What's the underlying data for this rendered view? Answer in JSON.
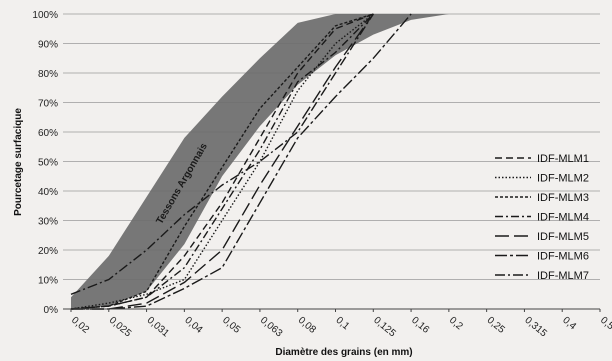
{
  "chart_data": {
    "type": "line",
    "xlabel": "Diamètre des grains (en mm)",
    "ylabel": "Pourcetage surfacique",
    "x_ticks": [
      "0,02",
      "0,025",
      "0,031",
      "0,04",
      "0,05",
      "0,063",
      "0,08",
      "0,1",
      "0,125",
      "0,16",
      "0,2",
      "0,25",
      "0,315",
      "0,4",
      "0,5"
    ],
    "y_ticks": [
      "0%",
      "10%",
      "20%",
      "30%",
      "40%",
      "50%",
      "60%",
      "70%",
      "80%",
      "90%",
      "100%"
    ],
    "ylim": [
      0,
      100
    ],
    "grid": true,
    "legend_position": "right",
    "band": {
      "label": "Tessons Argonnais",
      "color": "#6d6d6d",
      "upper": [
        [
          0.02,
          4
        ],
        [
          0.025,
          18
        ],
        [
          0.031,
          38
        ],
        [
          0.04,
          58
        ],
        [
          0.05,
          72
        ],
        [
          0.063,
          85
        ],
        [
          0.08,
          97
        ],
        [
          0.1,
          100
        ],
        [
          0.125,
          100
        ],
        [
          0.16,
          100
        ],
        [
          0.2,
          100
        ]
      ],
      "lower": [
        [
          0.02,
          0
        ],
        [
          0.025,
          1
        ],
        [
          0.031,
          6
        ],
        [
          0.04,
          22
        ],
        [
          0.05,
          45
        ],
        [
          0.063,
          62
        ],
        [
          0.08,
          76
        ],
        [
          0.1,
          86
        ],
        [
          0.125,
          93
        ],
        [
          0.16,
          98
        ],
        [
          0.2,
          100
        ]
      ]
    },
    "series": [
      {
        "name": "IDF-MLM1",
        "dash": "7,4",
        "values": [
          [
            0.02,
            0
          ],
          [
            0.025,
            1
          ],
          [
            0.031,
            4
          ],
          [
            0.04,
            18
          ],
          [
            0.05,
            36
          ],
          [
            0.063,
            58
          ],
          [
            0.08,
            80
          ],
          [
            0.1,
            95
          ],
          [
            0.125,
            100
          ]
        ]
      },
      {
        "name": "IDF-MLM2",
        "dash": "1.5,2",
        "values": [
          [
            0.02,
            0
          ],
          [
            0.025,
            2
          ],
          [
            0.031,
            5
          ],
          [
            0.04,
            10
          ],
          [
            0.05,
            30
          ],
          [
            0.063,
            50
          ],
          [
            0.08,
            74
          ],
          [
            0.1,
            90
          ],
          [
            0.125,
            100
          ]
        ]
      },
      {
        "name": "IDF-MLM3",
        "dash": "3,2",
        "values": [
          [
            0.02,
            0
          ],
          [
            0.025,
            1
          ],
          [
            0.031,
            6
          ],
          [
            0.04,
            28
          ],
          [
            0.05,
            48
          ],
          [
            0.063,
            68
          ],
          [
            0.08,
            82
          ],
          [
            0.1,
            96
          ],
          [
            0.125,
            100
          ]
        ]
      },
      {
        "name": "IDF-MLM4",
        "dash": "8,3,2,3",
        "values": [
          [
            0.02,
            0
          ],
          [
            0.025,
            1
          ],
          [
            0.031,
            4
          ],
          [
            0.04,
            14
          ],
          [
            0.05,
            34
          ],
          [
            0.063,
            54
          ],
          [
            0.08,
            77
          ],
          [
            0.1,
            87
          ],
          [
            0.125,
            100
          ]
        ]
      },
      {
        "name": "IDF-MLM5",
        "dash": "14,5",
        "values": [
          [
            0.02,
            0
          ],
          [
            0.025,
            0
          ],
          [
            0.031,
            2
          ],
          [
            0.04,
            9
          ],
          [
            0.05,
            20
          ],
          [
            0.063,
            42
          ],
          [
            0.08,
            62
          ],
          [
            0.1,
            82
          ],
          [
            0.125,
            100
          ]
        ]
      },
      {
        "name": "IDF-MLM6",
        "dash": "12,3,3,3",
        "values": [
          [
            0.02,
            0
          ],
          [
            0.025,
            0
          ],
          [
            0.031,
            1
          ],
          [
            0.04,
            7
          ],
          [
            0.05,
            14
          ],
          [
            0.063,
            36
          ],
          [
            0.08,
            58
          ],
          [
            0.1,
            72
          ],
          [
            0.125,
            85
          ],
          [
            0.16,
            100
          ]
        ]
      },
      {
        "name": "IDF-MLM7",
        "dash": "10,3,2,3",
        "values": [
          [
            0.02,
            5
          ],
          [
            0.025,
            10
          ],
          [
            0.031,
            20
          ],
          [
            0.04,
            32
          ],
          [
            0.05,
            42
          ],
          [
            0.063,
            50
          ],
          [
            0.08,
            60
          ],
          [
            0.1,
            80
          ],
          [
            0.125,
            100
          ]
        ]
      }
    ]
  }
}
